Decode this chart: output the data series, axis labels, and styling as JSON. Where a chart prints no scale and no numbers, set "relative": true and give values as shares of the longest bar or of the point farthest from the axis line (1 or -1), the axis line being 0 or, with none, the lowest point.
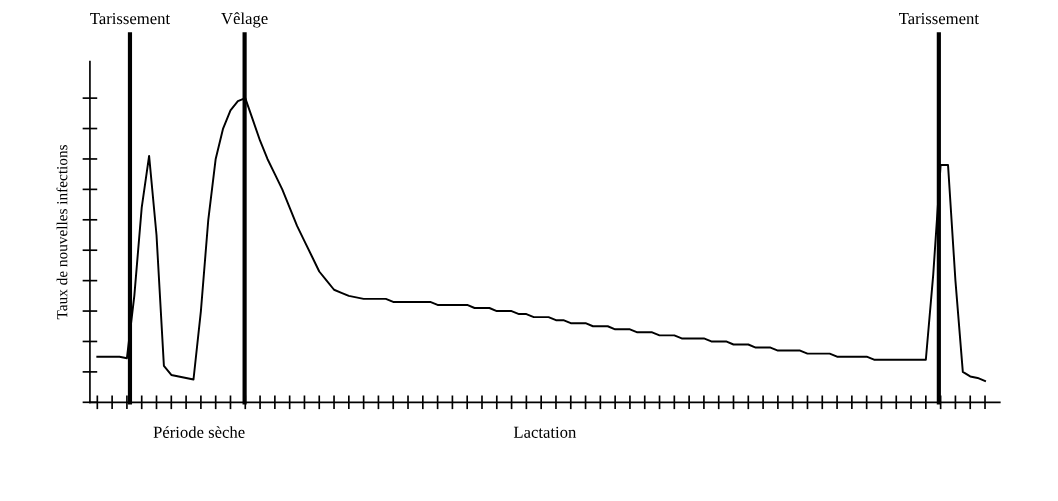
{
  "chart_data": {
    "type": "line",
    "relative": true,
    "ylabel": "Taux de nouvelles infections",
    "categories": [
      null,
      null,
      null,
      null,
      null,
      null,
      null,
      null,
      null,
      null,
      null,
      null,
      null,
      null,
      null,
      null,
      null,
      null,
      null,
      null,
      null,
      null,
      null,
      null,
      null,
      null,
      null,
      null,
      null,
      null,
      null,
      null,
      null,
      null,
      null,
      null,
      null,
      null,
      null,
      null,
      null,
      null,
      null,
      null,
      null,
      null,
      null,
      null,
      null,
      null,
      null,
      null,
      null,
      null,
      null,
      null,
      null,
      null,
      null,
      null,
      null,
      null,
      null,
      null,
      null,
      null,
      null,
      null,
      null,
      null,
      null,
      null,
      null,
      null,
      null,
      null,
      null,
      null,
      null,
      null,
      null,
      null,
      null,
      null,
      null,
      null,
      null,
      null,
      null,
      null,
      null,
      null,
      null,
      null,
      null,
      null,
      null,
      null,
      null,
      null,
      null,
      null,
      null,
      null,
      null,
      null,
      null,
      null,
      null,
      null,
      null,
      null,
      null,
      null,
      null,
      null,
      null,
      null,
      null,
      null,
      null
    ],
    "series": [
      {
        "color": "#000000",
        "values": [
          0.15,
          0.15,
          0.15,
          0.15,
          0.145,
          0.35,
          0.64,
          0.81,
          0.55,
          0.12,
          0.09,
          0.085,
          0.08,
          0.075,
          0.3,
          0.6,
          0.8,
          0.9,
          0.96,
          0.99,
          1.0,
          0.93,
          0.86,
          0.8,
          0.75,
          0.7,
          0.64,
          0.58,
          0.53,
          0.48,
          0.43,
          0.4,
          0.37,
          0.36,
          0.35,
          0.345,
          0.34,
          0.34,
          0.34,
          0.34,
          0.33,
          0.33,
          0.33,
          0.33,
          0.33,
          0.33,
          0.32,
          0.32,
          0.32,
          0.32,
          0.32,
          0.31,
          0.31,
          0.31,
          0.3,
          0.3,
          0.3,
          0.29,
          0.29,
          0.28,
          0.28,
          0.28,
          0.27,
          0.27,
          0.26,
          0.26,
          0.26,
          0.25,
          0.25,
          0.25,
          0.24,
          0.24,
          0.24,
          0.23,
          0.23,
          0.23,
          0.22,
          0.22,
          0.22,
          0.21,
          0.21,
          0.21,
          0.21,
          0.2,
          0.2,
          0.2,
          0.19,
          0.19,
          0.19,
          0.18,
          0.18,
          0.18,
          0.17,
          0.17,
          0.17,
          0.17,
          0.16,
          0.16,
          0.16,
          0.16,
          0.15,
          0.15,
          0.15,
          0.15,
          0.15,
          0.14,
          0.14,
          0.14,
          0.14,
          0.14,
          0.14,
          0.14,
          0.14,
          0.42,
          0.78,
          0.78,
          0.4,
          0.1,
          0.085,
          0.08,
          0.07
        ]
      }
    ],
    "annotations": [
      "Tarissement",
      "Vêlage",
      "Tarissement",
      "Période sèche",
      "Lactation"
    ],
    "legend": false,
    "marker": "none",
    "line_style": "solid"
  }
}
